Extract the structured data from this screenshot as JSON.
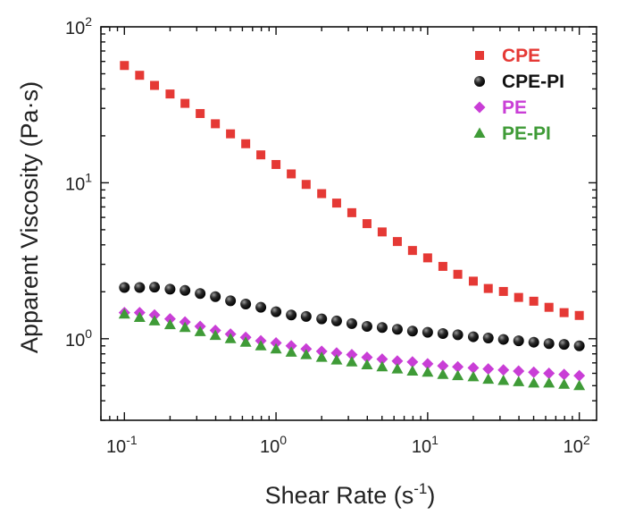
{
  "chart_data": {
    "type": "scatter",
    "xscale": "log",
    "yscale": "log",
    "xlim": [
      0.07,
      130
    ],
    "ylim": [
      0.3,
      100
    ],
    "xlabel_main": "Shear Rate (s",
    "xlabel_sup": "-1",
    "xlabel_tail": ")",
    "ylabel": "Apparent Viscosity (Pa·s)",
    "x_ticks": [
      {
        "value": 0.1,
        "base": "10",
        "exp": "-1"
      },
      {
        "value": 1,
        "base": "10",
        "exp": "0"
      },
      {
        "value": 10,
        "base": "10",
        "exp": "1"
      },
      {
        "value": 100,
        "base": "10",
        "exp": "2"
      }
    ],
    "y_ticks": [
      {
        "value": 1,
        "base": "10",
        "exp": "0"
      },
      {
        "value": 10,
        "base": "10",
        "exp": "1"
      },
      {
        "value": 100,
        "base": "10",
        "exp": "2"
      }
    ],
    "legend_position": "top-right",
    "x": [
      0.1,
      0.126,
      0.158,
      0.2,
      0.251,
      0.316,
      0.398,
      0.501,
      0.631,
      0.794,
      1.0,
      1.26,
      1.58,
      2.0,
      2.51,
      3.16,
      3.98,
      5.01,
      6.31,
      7.94,
      10.0,
      12.6,
      15.8,
      20.0,
      25.1,
      31.6,
      39.8,
      50.1,
      63.1,
      79.4,
      100.0
    ],
    "series": [
      {
        "name": "CPE",
        "color": "#e53935",
        "marker": "square",
        "values": [
          56.5,
          48.9,
          42.1,
          37.1,
          32.3,
          27.8,
          23.9,
          20.6,
          17.8,
          15.1,
          13.1,
          11.4,
          9.76,
          8.52,
          7.41,
          6.43,
          5.47,
          4.84,
          4.2,
          3.68,
          3.3,
          2.91,
          2.59,
          2.34,
          2.1,
          2.01,
          1.84,
          1.74,
          1.59,
          1.47,
          1.41
        ]
      },
      {
        "name": "CPE-PI",
        "color": "#111111",
        "marker": "sphere",
        "values": [
          2.13,
          2.13,
          2.14,
          2.08,
          2.04,
          1.95,
          1.86,
          1.75,
          1.67,
          1.59,
          1.49,
          1.42,
          1.39,
          1.34,
          1.3,
          1.25,
          1.2,
          1.18,
          1.15,
          1.12,
          1.1,
          1.08,
          1.06,
          1.03,
          1.01,
          0.99,
          0.97,
          0.95,
          0.93,
          0.92,
          0.9
        ]
      },
      {
        "name": "PE",
        "color": "#c93ed6",
        "marker": "diamond",
        "values": [
          1.47,
          1.47,
          1.42,
          1.34,
          1.28,
          1.2,
          1.13,
          1.07,
          1.02,
          0.97,
          0.94,
          0.9,
          0.86,
          0.83,
          0.81,
          0.79,
          0.76,
          0.74,
          0.72,
          0.71,
          0.69,
          0.67,
          0.66,
          0.65,
          0.64,
          0.63,
          0.62,
          0.61,
          0.6,
          0.59,
          0.58
        ]
      },
      {
        "name": "PE-PI",
        "color": "#3f9b37",
        "marker": "triangle",
        "values": [
          1.44,
          1.37,
          1.3,
          1.23,
          1.18,
          1.11,
          1.05,
          1.0,
          0.95,
          0.9,
          0.86,
          0.82,
          0.79,
          0.76,
          0.73,
          0.71,
          0.68,
          0.66,
          0.64,
          0.62,
          0.61,
          0.59,
          0.58,
          0.57,
          0.55,
          0.54,
          0.53,
          0.52,
          0.52,
          0.51,
          0.5
        ]
      }
    ]
  }
}
